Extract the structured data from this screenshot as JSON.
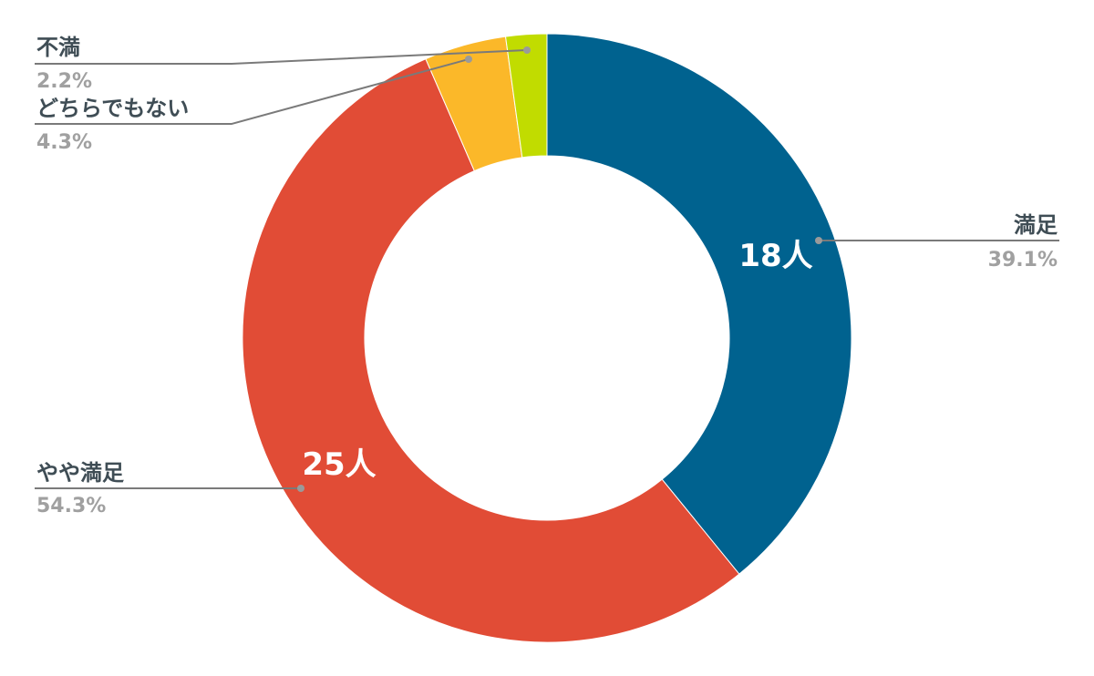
{
  "chart_data": {
    "type": "pie",
    "donut": true,
    "title": "",
    "categories": [
      "満足",
      "やや満足",
      "どちらでもない",
      "不満"
    ],
    "values": [
      18,
      25,
      2,
      1
    ],
    "percents": [
      "39.1%",
      "54.3%",
      "4.3%",
      "2.2%"
    ],
    "inner_labels": [
      "18人",
      "25人",
      "",
      ""
    ],
    "colors": [
      "#00628f",
      "#e14c36",
      "#fbb829",
      "#c1dc00"
    ],
    "start_angle_deg": 0,
    "direction": "clockwise",
    "legend": "none",
    "callout_line_color": "#7a7a7a"
  }
}
